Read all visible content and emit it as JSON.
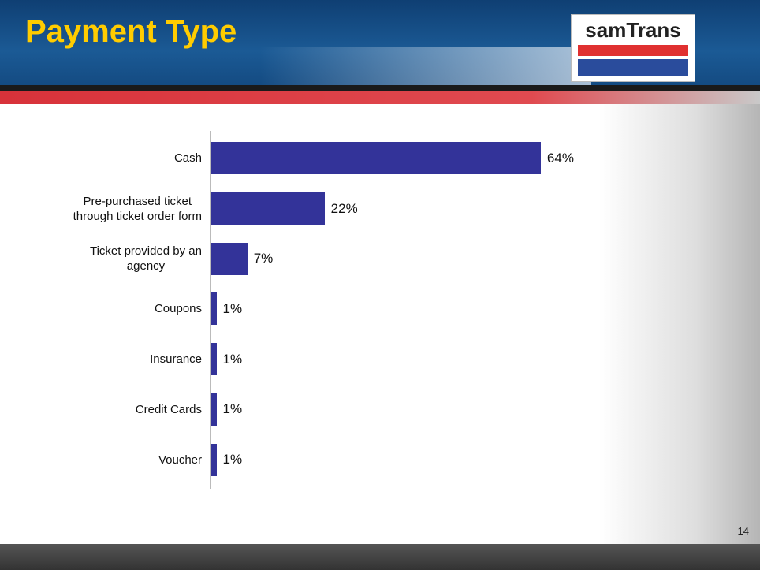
{
  "header": {
    "title": "Payment Type",
    "logo": "samTrans"
  },
  "page_number": "14",
  "chart_data": {
    "type": "bar",
    "orientation": "horizontal",
    "categories": [
      "Cash",
      "Pre-purchased ticket\nthrough ticket order form",
      "Ticket provided by an\nagency",
      "Coupons",
      "Insurance",
      "Credit Cards",
      "Voucher"
    ],
    "values": [
      64,
      22,
      7,
      1,
      1,
      1,
      1
    ],
    "value_labels": [
      "64%",
      "22%",
      "7%",
      "1%",
      "1%",
      "1%",
      "1%"
    ],
    "color": "#333399",
    "xlim": [
      0,
      100
    ]
  }
}
